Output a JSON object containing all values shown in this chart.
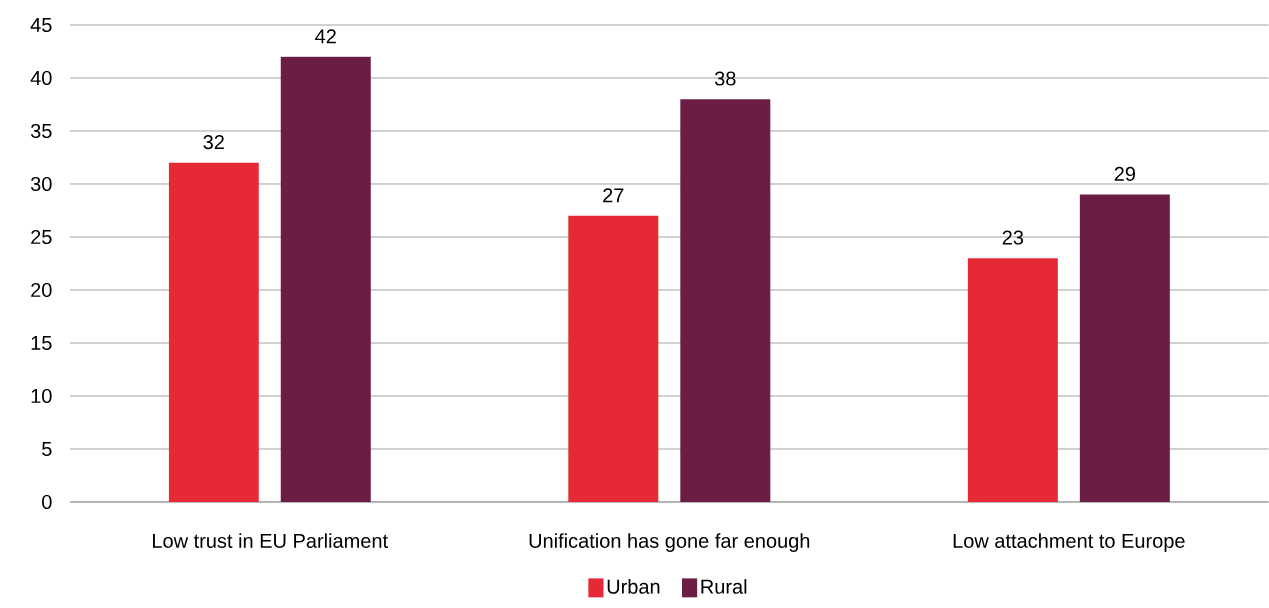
{
  "chart_data": {
    "type": "bar",
    "categories": [
      "Low trust in EU Parliament",
      "Unification has gone far enough",
      "Low attachment to Europe"
    ],
    "series": [
      {
        "name": "Urban",
        "color": "#e52a35",
        "values": [
          32,
          27,
          23
        ]
      },
      {
        "name": "Rural",
        "color": "#6b1d45",
        "values": [
          42,
          38,
          29
        ]
      }
    ],
    "ylim": [
      0,
      45
    ],
    "yticks": [
      0,
      5,
      10,
      15,
      20,
      25,
      30,
      35,
      40,
      45
    ],
    "grid": "y",
    "legend": "bottom",
    "data_labels": true
  }
}
